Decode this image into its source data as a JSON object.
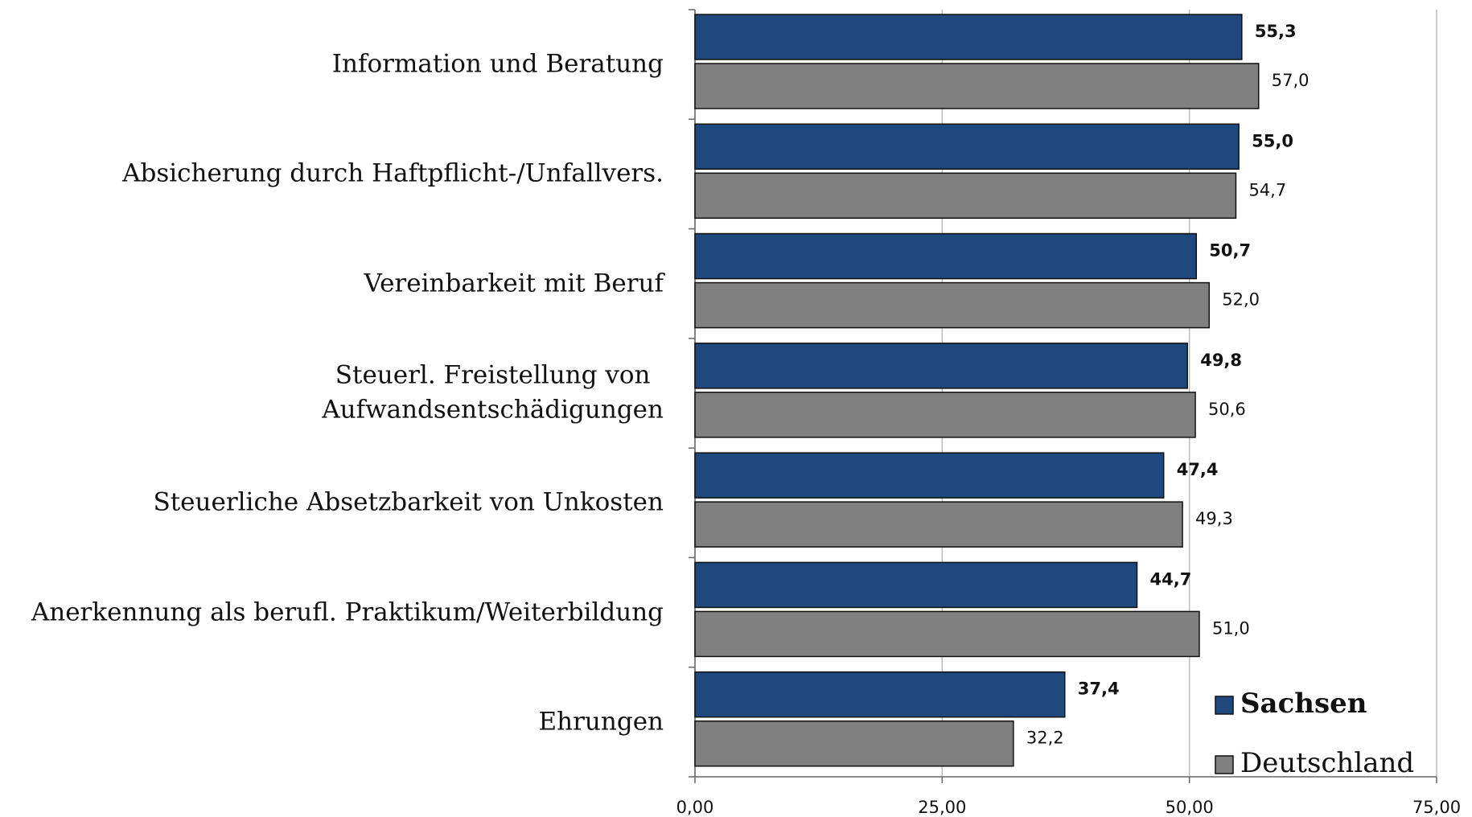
{
  "chart_data": {
    "type": "bar",
    "orientation": "horizontal",
    "categories": [
      "Information und Beratung",
      "Absicherung durch Haftpflicht-/Unfallvers.",
      "Vereinbarkeit mit Beruf",
      "Steuerl. Freistellung von \nAufwandsentschädigungen",
      "Steuerliche Absetzbarkeit von Unkosten",
      "Anerkennung als berufl. Praktikum/Weiterbildung",
      "Ehrungen"
    ],
    "series": [
      {
        "name": "Sachsen",
        "color": "#1f497d",
        "values": [
          55.3,
          55.0,
          50.7,
          49.8,
          47.4,
          44.7,
          37.4
        ],
        "value_labels": [
          "55,3",
          "55,0",
          "50,7",
          "49,8",
          "47,4",
          "44,7",
          "37,4"
        ]
      },
      {
        "name": "Deutschland",
        "color": "#808080",
        "values": [
          57.0,
          54.7,
          52.0,
          50.6,
          49.3,
          51.0,
          32.2
        ],
        "value_labels": [
          "57,0",
          "54,7",
          "52,0",
          "50,6",
          "49,3",
          "51,0",
          "32,2"
        ]
      }
    ],
    "xlim": [
      0,
      75
    ],
    "xticks": [
      {
        "value": 0,
        "label": "0,00"
      },
      {
        "value": 25,
        "label": "25,00"
      },
      {
        "value": 50,
        "label": "50,00"
      },
      {
        "value": 75,
        "label": "75,00"
      }
    ],
    "grid": true,
    "legend": "lower right"
  }
}
